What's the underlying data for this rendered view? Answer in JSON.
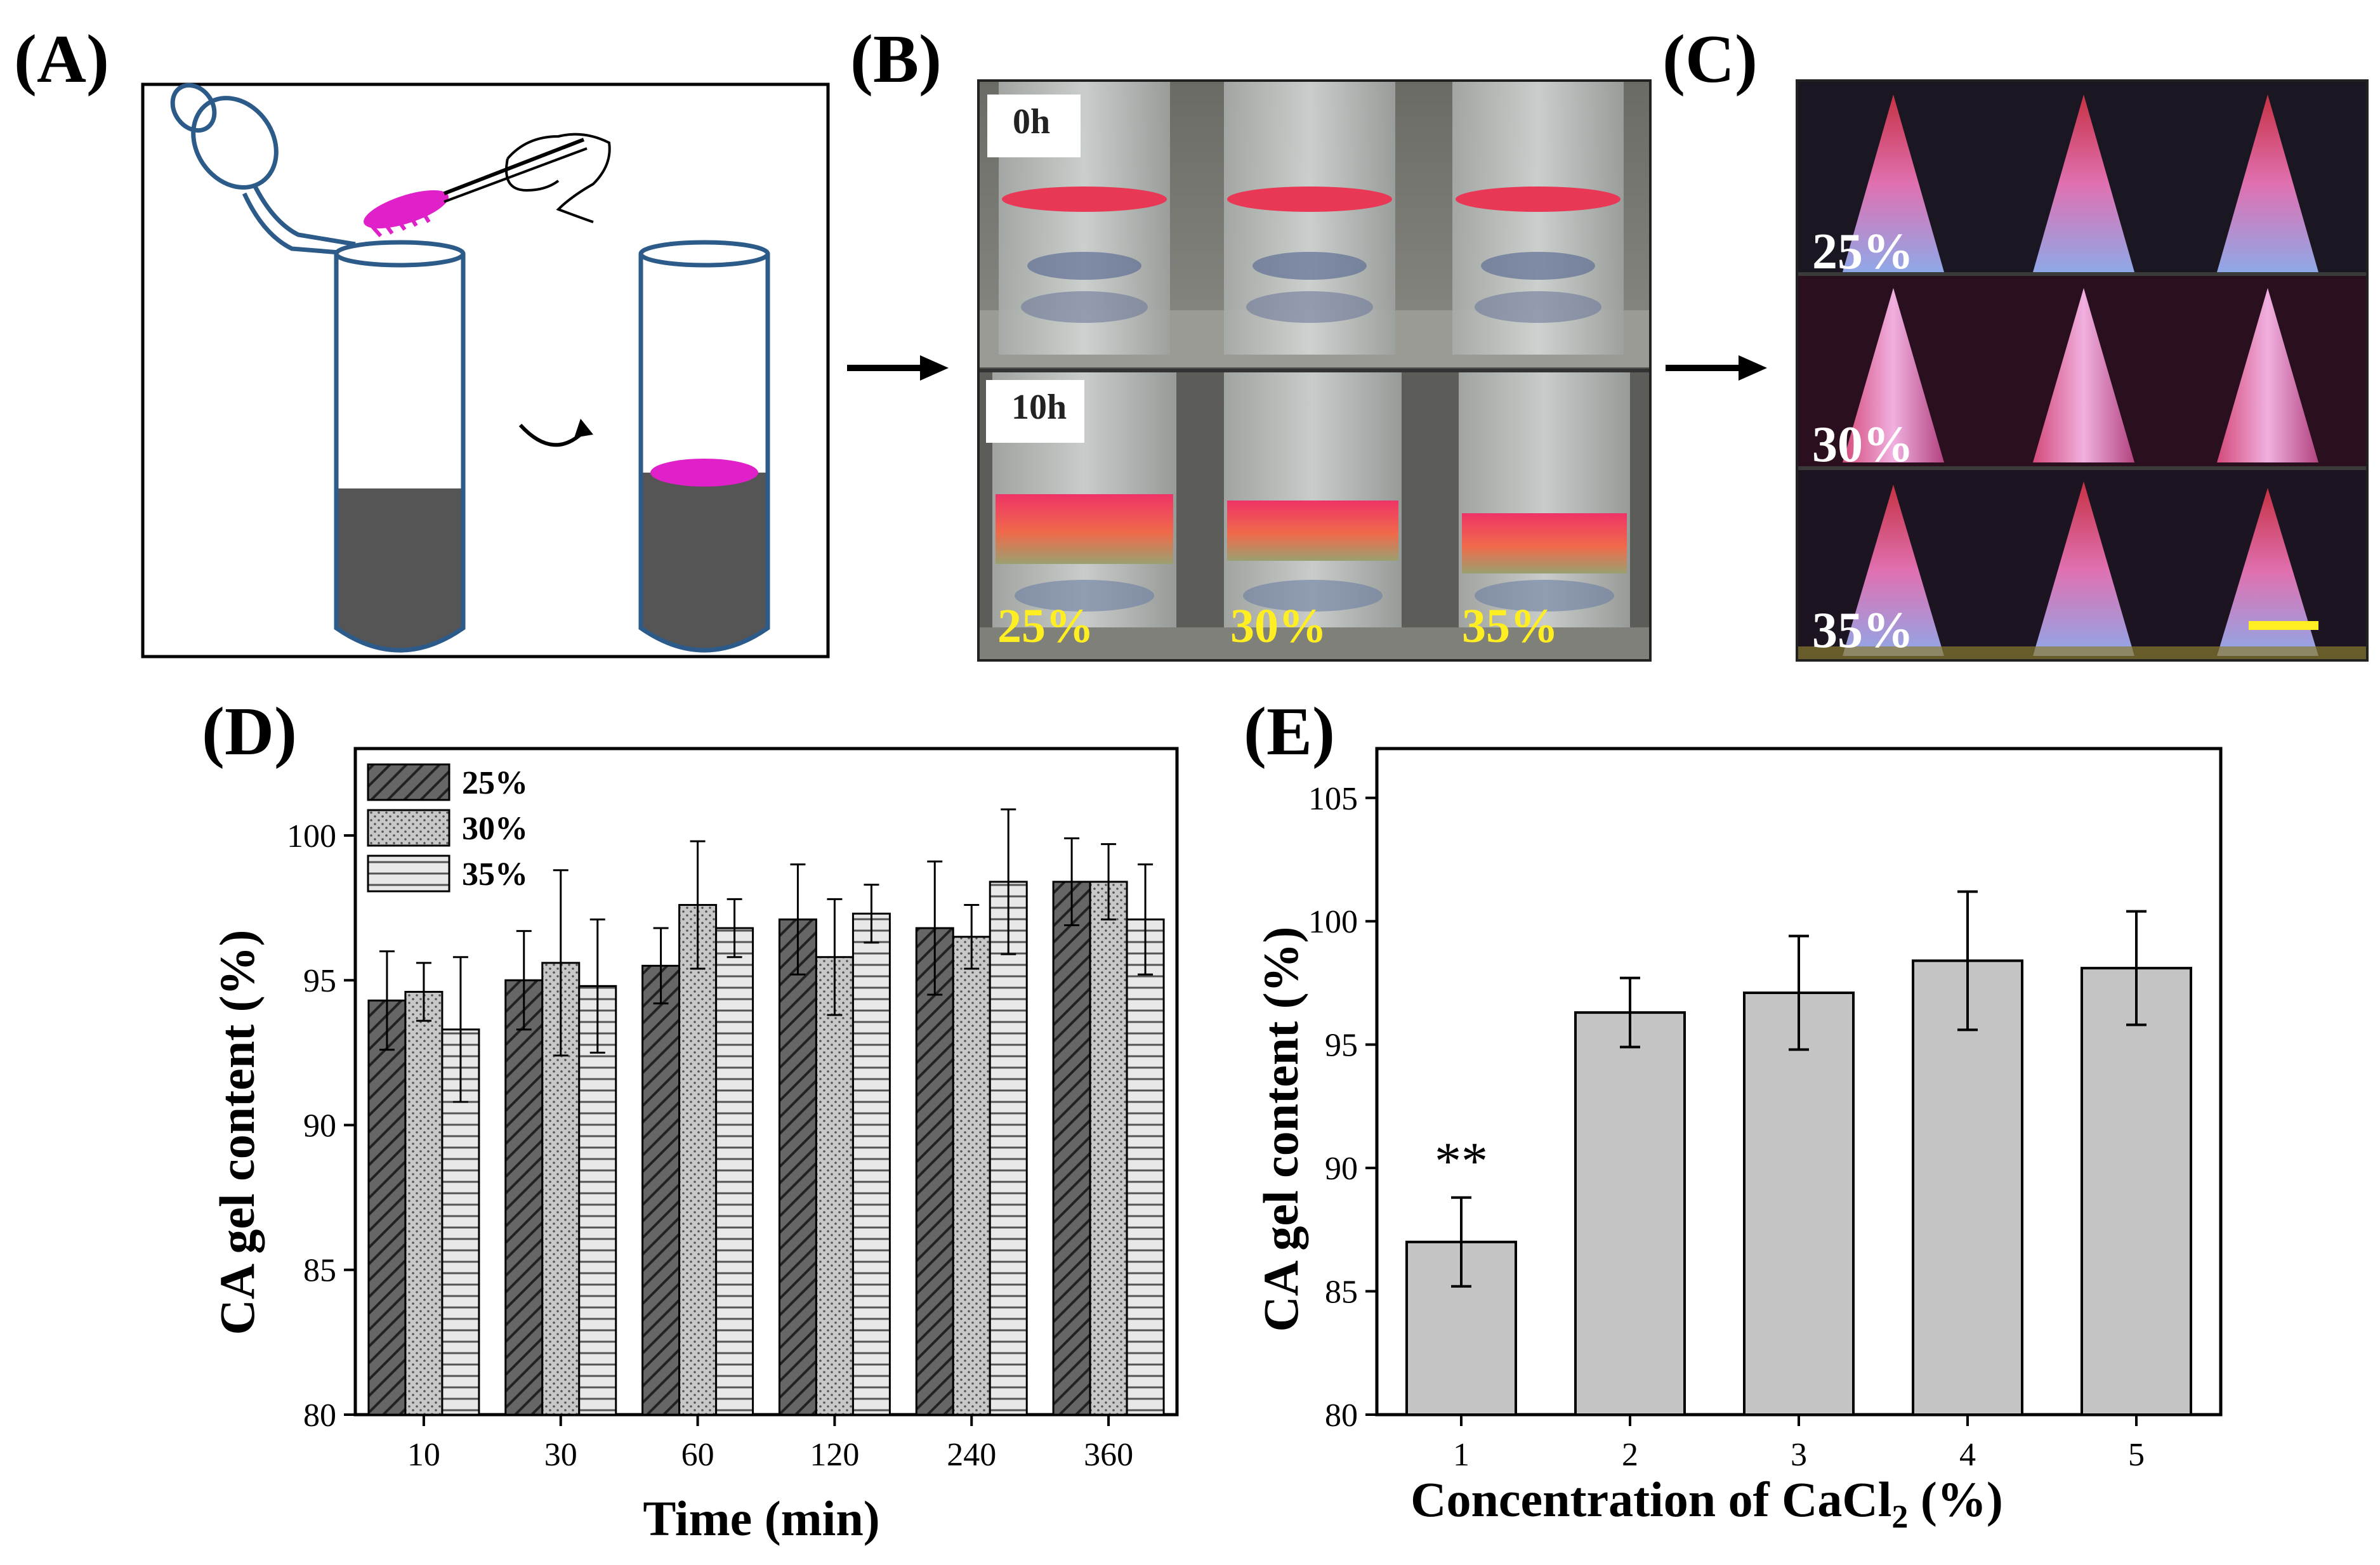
{
  "panel_labels": {
    "a": "(A)",
    "b": "(B)",
    "c": "(C)",
    "d": "(D)",
    "e": "(E)"
  },
  "panel_b": {
    "times": [
      "0h",
      "10h"
    ],
    "concentrations": [
      "25%",
      "30%",
      "35%"
    ]
  },
  "panel_c": {
    "rows": [
      "25%",
      "30%",
      "35%"
    ]
  },
  "colors": {
    "gel_magenta": "#e020c8",
    "tube_outline": "#2c5b8a",
    "gel_grey": "#555555",
    "bar_e": "#c4c4c4",
    "bar_25": "#666666",
    "bar_30": "#bdbdbd",
    "bar_35": "#e6e6e6",
    "annotation_yellow": "#ffee22"
  },
  "chart_data": [
    {
      "type": "bar",
      "panel": "D",
      "title": "",
      "xlabel": "Time (min)",
      "ylabel": "CA gel content (%)",
      "categories": [
        "10",
        "30",
        "60",
        "120",
        "240",
        "360"
      ],
      "ylim": [
        80,
        103
      ],
      "yticks": [
        80,
        85,
        90,
        95,
        100
      ],
      "legend_position": "top-left",
      "series": [
        {
          "name": "25%",
          "values": [
            94.3,
            95.0,
            95.5,
            97.1,
            96.8,
            98.4
          ],
          "errors": [
            1.7,
            1.7,
            1.3,
            1.9,
            2.3,
            1.5
          ]
        },
        {
          "name": "30%",
          "values": [
            94.6,
            95.6,
            97.6,
            95.8,
            96.5,
            98.4
          ],
          "errors": [
            1.0,
            3.2,
            2.2,
            2.0,
            1.1,
            1.3
          ]
        },
        {
          "name": "35%",
          "values": [
            93.3,
            94.8,
            96.8,
            97.3,
            98.4,
            97.1
          ],
          "errors": [
            2.5,
            2.3,
            1.0,
            1.0,
            2.5,
            1.9
          ]
        }
      ]
    },
    {
      "type": "bar",
      "panel": "E",
      "title": "",
      "xlabel": "Concentration of CaCl",
      "xlabel_subscript": "2",
      "xlabel_suffix": " (%)",
      "ylabel": "CA gel content (%)",
      "categories": [
        "1",
        "2",
        "3",
        "4",
        "5"
      ],
      "values": [
        87.0,
        96.3,
        97.1,
        98.4,
        98.1
      ],
      "errors": [
        1.8,
        1.4,
        2.3,
        2.8,
        2.3
      ],
      "ylim": [
        80,
        107
      ],
      "yticks": [
        80,
        85,
        90,
        95,
        100,
        105
      ],
      "annotations": [
        {
          "category": "1",
          "text": "**"
        }
      ]
    }
  ]
}
